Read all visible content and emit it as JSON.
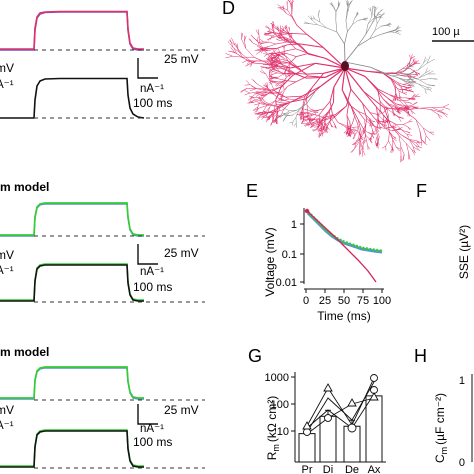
{
  "panels": {
    "D": {
      "letter": "D",
      "scale_label": "100 µ"
    },
    "E": {
      "letter": "E",
      "ylabel": "Voltage (mV)",
      "xlabel": "Time (ms)",
      "yticks": [
        "1",
        "0.1",
        "0.01"
      ],
      "xticks": [
        "0",
        "25",
        "50",
        "75",
        "100"
      ]
    },
    "F": {
      "letter": "F",
      "ylabel": "SSE (µV²)"
    },
    "G": {
      "letter": "G",
      "ylabel": "R",
      "ylabel_sub": "m",
      "ylabel_unit": "(kΩ cm²)",
      "yticks": [
        "1000",
        "100",
        "10"
      ],
      "xticks": [
        "Pr",
        "Di",
        "De",
        "Ax"
      ]
    },
    "H": {
      "letter": "H",
      "ylabel": "C",
      "ylabel_sub": "m",
      "ylabel_unit": "(µF cm⁻²)",
      "ytick_top": "1",
      "ytick_bottom": "0"
    }
  },
  "traces": {
    "scale_mv": "25 mV",
    "scale_na": "nA⁻¹",
    "scale_ms": "100 ms",
    "model_label": "m model",
    "left_frag_mv": "mV",
    "left_frag_na": "nA⁻¹",
    "left_frag_na2": "A⁻¹"
  },
  "colors": {
    "pink": "#e0306a",
    "purple": "#6a5acd",
    "green": "#33cc33",
    "blue": "#5a8fd6",
    "black": "#111111",
    "gray": "#888888",
    "fit_red": "#d0245a"
  },
  "chart_data": {
    "type": "bar",
    "categories": [
      "Pr",
      "Di",
      "De",
      "Ax"
    ],
    "values": [
      8,
      35,
      15,
      200
    ],
    "ylabel": "R_m (kΩ cm²)",
    "yscale": "log",
    "ylim": [
      5,
      1000
    ]
  }
}
